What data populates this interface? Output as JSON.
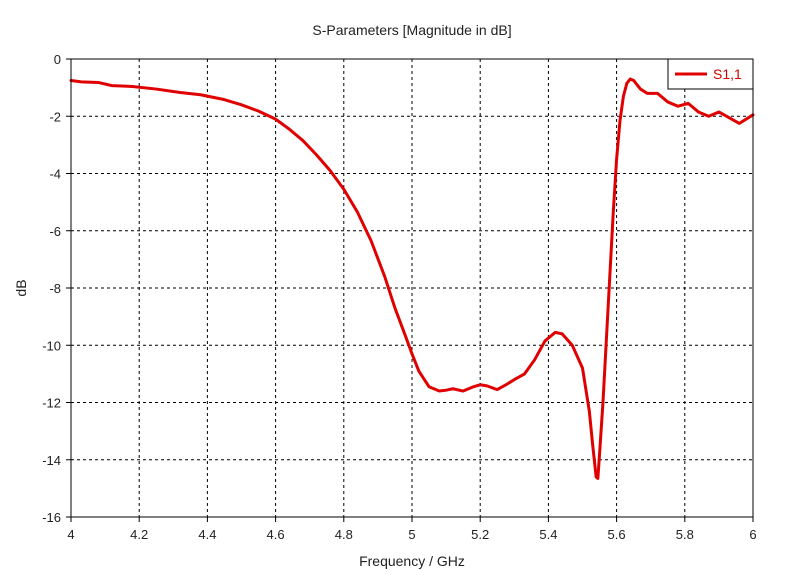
{
  "chart_data": {
    "type": "line",
    "title": "S-Parameters [Magnitude in dB]",
    "xlabel": "Frequency / GHz",
    "ylabel": "dB",
    "xlim": [
      4,
      6
    ],
    "ylim": [
      -16,
      0
    ],
    "xticks": [
      4,
      4.2,
      4.4,
      4.6,
      4.8,
      5,
      5.2,
      5.4,
      5.6,
      5.8,
      6
    ],
    "xtick_labels": [
      "4",
      "4.2",
      "4.4",
      "4.6",
      "4.8",
      "5",
      "5.2",
      "5.4",
      "5.6",
      "5.8",
      "6"
    ],
    "yticks": [
      0,
      -2,
      -4,
      -6,
      -8,
      -10,
      -12,
      -14,
      -16
    ],
    "ytick_labels": [
      "0",
      "-2",
      "-4",
      "-6",
      "-8",
      "-10",
      "-12",
      "-14",
      "-16"
    ],
    "grid": true,
    "legend_position": "top-right",
    "series": [
      {
        "name": "S1,1",
        "color": "#e00000",
        "x": [
          4.0,
          4.03,
          4.08,
          4.12,
          4.18,
          4.25,
          4.32,
          4.38,
          4.45,
          4.5,
          4.55,
          4.6,
          4.64,
          4.68,
          4.72,
          4.76,
          4.8,
          4.84,
          4.88,
          4.92,
          4.95,
          4.98,
          5.0,
          5.02,
          5.05,
          5.08,
          5.1,
          5.12,
          5.15,
          5.18,
          5.2,
          5.22,
          5.25,
          5.28,
          5.3,
          5.33,
          5.36,
          5.39,
          5.42,
          5.44,
          5.47,
          5.5,
          5.52,
          5.53,
          5.54,
          5.545,
          5.55,
          5.56,
          5.57,
          5.58,
          5.59,
          5.6,
          5.61,
          5.62,
          5.63,
          5.64,
          5.65,
          5.67,
          5.69,
          5.72,
          5.75,
          5.78,
          5.81,
          5.84,
          5.87,
          5.9,
          5.93,
          5.96,
          6.0
        ],
        "y": [
          -0.75,
          -0.8,
          -0.82,
          -0.93,
          -0.96,
          -1.05,
          -1.17,
          -1.25,
          -1.42,
          -1.6,
          -1.82,
          -2.1,
          -2.45,
          -2.85,
          -3.35,
          -3.9,
          -4.55,
          -5.35,
          -6.35,
          -7.6,
          -8.7,
          -9.65,
          -10.3,
          -10.9,
          -11.45,
          -11.6,
          -11.57,
          -11.52,
          -11.6,
          -11.45,
          -11.38,
          -11.42,
          -11.55,
          -11.35,
          -11.2,
          -11.0,
          -10.5,
          -9.85,
          -9.55,
          -9.6,
          -10.0,
          -10.8,
          -12.3,
          -13.5,
          -14.6,
          -14.65,
          -13.8,
          -12.0,
          -9.8,
          -7.6,
          -5.4,
          -3.5,
          -2.15,
          -1.3,
          -0.85,
          -0.7,
          -0.75,
          -1.05,
          -1.2,
          -1.2,
          -1.5,
          -1.65,
          -1.55,
          -1.85,
          -2.0,
          -1.85,
          -2.05,
          -2.25,
          -1.95
        ]
      }
    ]
  }
}
